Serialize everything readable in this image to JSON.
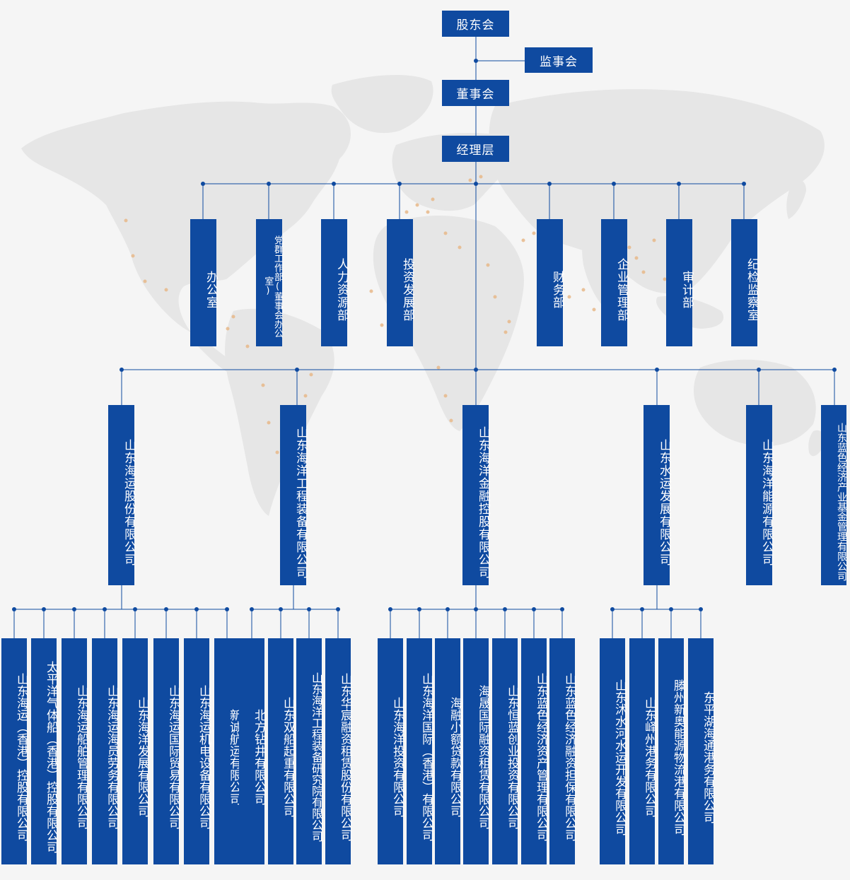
{
  "top": {
    "shareholders": "股东会",
    "supervisors": "监事会",
    "board": "董事会",
    "management": "经理层"
  },
  "departments": [
    "办公室",
    "党群工作部(董事会办公室)",
    "人力资源部",
    "投资发展部",
    "财务部",
    "企业管理部",
    "审计部",
    "纪检监察室"
  ],
  "subsidiaries": [
    {
      "name": "山东海运股份有限公司",
      "children": [
        "山东海运（香港）控股有限公司",
        "太平洋气体船（香港）控股有限公司",
        "山东海运船舶管理有限公司",
        "山东海运海员劳务有限公司",
        "山东海洋发展有限公司",
        "山东海运国际贸易有限公司",
        "山东海运机电设备有限公司",
        "新诚航运有限公司"
      ]
    },
    {
      "name": "山东海洋工程装备有限公司",
      "children": [
        "北方钻井有限公司",
        "山东双船起重有限公司",
        "山东海洋工程装备研究院有限公司",
        "山东华宸融资租赁股份有限公司"
      ]
    },
    {
      "name": "山东海洋金融控股有限公司",
      "children": [
        "山东海洋投资有限公司",
        "山东海洋国际（香港）有限公司",
        "海融小额贷款有限公司",
        "海晟国际融资租赁有限公司",
        "山东恒蓝创业投资有限公司",
        "山东蓝色经济资产管理有限公司",
        "山东蓝色经济融资担保有限公司"
      ]
    },
    {
      "name": "山东水运发展有限公司",
      "children": [
        "山东沭水河水运开发有限公司",
        "山东峄州港务有限公司",
        "滕州新奥能源物流港有限公司",
        "东平湖海通港务有限公司"
      ]
    },
    {
      "name": "山东海洋能源有限公司",
      "children": []
    },
    {
      "name": "山东蓝色经济产业基金管理有限公司",
      "children": []
    }
  ],
  "colors": {
    "box": "#0f4aa0",
    "line": "#0f4aa0",
    "background": "#f5f5f5",
    "map": "#e6e6e6",
    "map_dots": "#e8b98a"
  }
}
